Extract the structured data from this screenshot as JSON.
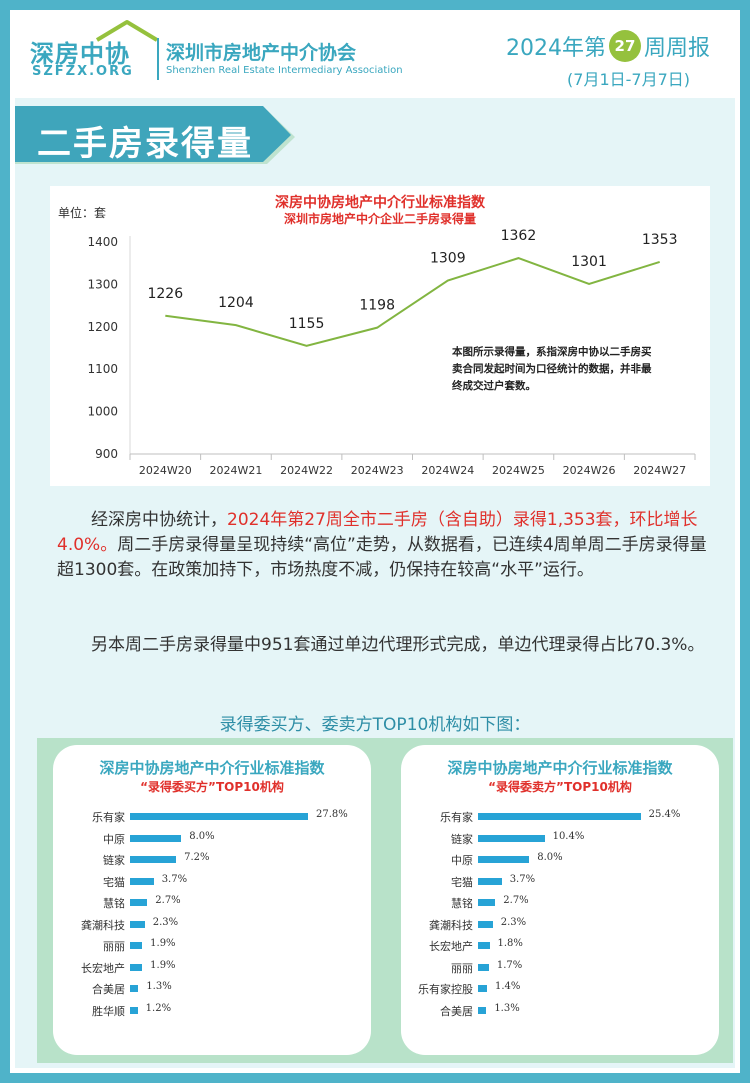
{
  "header": {
    "logo_cn": "深房中协",
    "logo_en": "SZFZX.ORG",
    "assoc_cn": "深圳市房地产中介协会",
    "assoc_en": "Shenzhen Real Estate Intermediary Association",
    "report_prefix": "2024年第",
    "week_number": "27",
    "report_suffix": "周周报",
    "date_range": "(7月1日-7月7日)",
    "brand_color": "#3aa7bf",
    "badge_color": "#95c13d"
  },
  "banner": {
    "title": "二手房录得量"
  },
  "chart": {
    "unit_label": "单位：套",
    "note": "本图所示录得量，系指深房中协以二手房买卖合同发起时间为口径统计的数据，并非最终成交过户套数。"
  },
  "chart_data": {
    "type": "line",
    "title": "深房中协房地产中介行业标准指数",
    "subtitle": "深圳市房地产中介企业二手房录得量",
    "ylabel": "单位：套",
    "xlabel": "",
    "categories": [
      "2024W20",
      "2024W21",
      "2024W22",
      "2024W23",
      "2024W24",
      "2024W25",
      "2024W26",
      "2024W27"
    ],
    "values": [
      1226,
      1204,
      1155,
      1198,
      1309,
      1362,
      1301,
      1353
    ],
    "ylim": [
      900,
      1400
    ],
    "yticks": [
      900,
      1000,
      1100,
      1200,
      1300,
      1400
    ],
    "grid": false,
    "line_color": "#82b541"
  },
  "paragraphs": {
    "p1_prefix": "经深房中协统计，",
    "p1_red": "2024年第27周全市二手房（含自助）录得1,353套，环比增长4.0%。",
    "p1_rest": "周二手房录得量呈现持续“高位”走势，从数据看，已连续4周单周二手房录得量超1300套。在政策加持下，市场热度不减，仍保持在较高“水平”运行。",
    "p2": "另本周二手房录得量中951套通过单边代理形式完成，单边代理录得占比70.3%。",
    "caption": "录得委买方、委卖方TOP10机构如下图："
  },
  "buyer_top10": {
    "title": "深房中协房地产中介行业标准指数",
    "subtitle": "“录得委买方”TOP10机构",
    "items": [
      {
        "name": "乐有家",
        "value": 27.8,
        "label": "27.8%"
      },
      {
        "name": "中原",
        "value": 8.0,
        "label": "8.0%"
      },
      {
        "name": "链家",
        "value": 7.2,
        "label": "7.2%"
      },
      {
        "name": "宅猫",
        "value": 3.7,
        "label": "3.7%"
      },
      {
        "name": "慧铭",
        "value": 2.7,
        "label": "2.7%"
      },
      {
        "name": "龚潮科技",
        "value": 2.3,
        "label": "2.3%"
      },
      {
        "name": "丽丽",
        "value": 1.9,
        "label": "1.9%"
      },
      {
        "name": "长宏地产",
        "value": 1.9,
        "label": "1.9%"
      },
      {
        "name": "合美居",
        "value": 1.3,
        "label": "1.3%"
      },
      {
        "name": "胜华顺",
        "value": 1.2,
        "label": "1.2%"
      }
    ]
  },
  "seller_top10": {
    "title": "深房中协房地产中介行业标准指数",
    "subtitle": "“录得委卖方”TOP10机构",
    "items": [
      {
        "name": "乐有家",
        "value": 25.4,
        "label": "25.4%"
      },
      {
        "name": "链家",
        "value": 10.4,
        "label": "10.4%"
      },
      {
        "name": "中原",
        "value": 8.0,
        "label": "8.0%"
      },
      {
        "name": "宅猫",
        "value": 3.7,
        "label": "3.7%"
      },
      {
        "name": "慧铭",
        "value": 2.7,
        "label": "2.7%"
      },
      {
        "name": "龚潮科技",
        "value": 2.3,
        "label": "2.3%"
      },
      {
        "name": "长宏地产",
        "value": 1.8,
        "label": "1.8%"
      },
      {
        "name": "丽丽",
        "value": 1.7,
        "label": "1.7%"
      },
      {
        "name": "乐有家控股",
        "value": 1.4,
        "label": "1.4%"
      },
      {
        "name": "合美居",
        "value": 1.3,
        "label": "1.3%"
      }
    ]
  }
}
